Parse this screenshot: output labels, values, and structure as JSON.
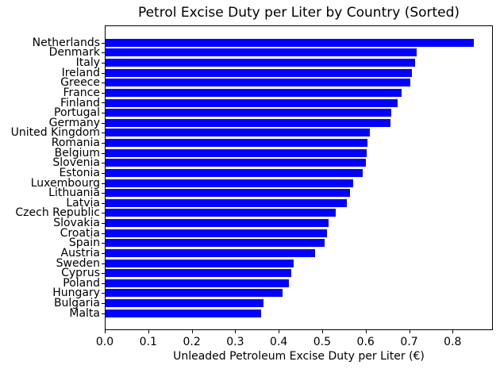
{
  "chart_data": {
    "type": "bar",
    "orientation": "horizontal",
    "title": "Petrol Excise Duty per Liter by Country (Sorted)",
    "xlabel": "Unleaded Petroleum Excise Duty per Liter (€)",
    "ylabel": "",
    "bar_color": "#0000ff",
    "grid": false,
    "legend": null,
    "xlim": [
      0,
      0.8925
    ],
    "xticks": [
      0.0,
      0.1,
      0.2,
      0.3,
      0.4,
      0.5,
      0.6,
      0.7,
      0.8
    ],
    "xtick_labels": [
      "0.0",
      "0.1",
      "0.2",
      "0.3",
      "0.4",
      "0.5",
      "0.6",
      "0.7",
      "0.8"
    ],
    "categories": [
      "Netherlands",
      "Denmark",
      "Italy",
      "Ireland",
      "Greece",
      "France",
      "Finland",
      "Portugal",
      "Germany",
      "United Kingdom",
      "Romania",
      "Belgium",
      "Slovenia",
      "Estonia",
      "Luxembourg",
      "Lithuania",
      "Latvia",
      "Czech Republic",
      "Slovakia",
      "Croatia",
      "Spain",
      "Austria",
      "Sweden",
      "Cyprus",
      "Poland",
      "Hungary",
      "Bulgaria",
      "Malta"
    ],
    "values": [
      0.85,
      0.719,
      0.715,
      0.708,
      0.703,
      0.684,
      0.674,
      0.66,
      0.657,
      0.611,
      0.605,
      0.603,
      0.601,
      0.594,
      0.572,
      0.564,
      0.557,
      0.532,
      0.515,
      0.512,
      0.506,
      0.484,
      0.434,
      0.429,
      0.423,
      0.408,
      0.364,
      0.36
    ]
  }
}
